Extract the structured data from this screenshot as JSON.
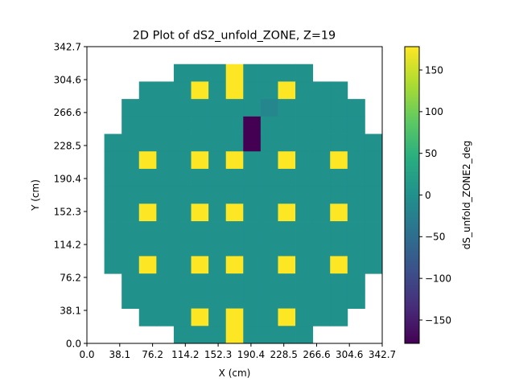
{
  "chart_data": {
    "type": "heatmap",
    "title": "2D Plot of dS2_unfold_ZONE, Z=19",
    "xlabel": "X (cm)",
    "ylabel": "Y (cm)",
    "colorbar_label": "dS_unfold_ZONE2_deg",
    "colormap": "viridis",
    "xlim": [
      0.0,
      342.7
    ],
    "ylim": [
      0.0,
      342.7
    ],
    "x_ticks": [
      "0.0",
      "38.1",
      "76.2",
      "114.2",
      "152.3",
      "190.4",
      "228.5",
      "266.6",
      "304.6",
      "342.7"
    ],
    "y_ticks": [
      "0.0",
      "38.1",
      "76.2",
      "114.2",
      "152.3",
      "190.4",
      "228.5",
      "266.6",
      "304.6",
      "342.7"
    ],
    "clim": [
      -178,
      178
    ],
    "colorbar_ticks": [
      150,
      100,
      50,
      0,
      -50,
      -100,
      -150
    ],
    "grid_n": 17,
    "cell_size": 20.16,
    "default_value": 0,
    "row_spans": [
      {
        "row": 1,
        "cols": [
          5,
          12
        ]
      },
      {
        "row": 2,
        "cols": [
          3,
          14
        ]
      },
      {
        "row": 3,
        "cols": [
          2,
          15
        ]
      },
      {
        "row": 4,
        "cols": [
          2,
          15
        ]
      },
      {
        "row": 5,
        "cols": [
          1,
          16
        ]
      },
      {
        "row": 6,
        "cols": [
          1,
          16
        ]
      },
      {
        "row": 7,
        "cols": [
          1,
          16
        ]
      },
      {
        "row": 8,
        "cols": [
          1,
          16
        ]
      },
      {
        "row": 9,
        "cols": [
          1,
          16
        ]
      },
      {
        "row": 10,
        "cols": [
          1,
          16
        ]
      },
      {
        "row": 11,
        "cols": [
          1,
          16
        ]
      },
      {
        "row": 12,
        "cols": [
          1,
          16
        ]
      },
      {
        "row": 13,
        "cols": [
          2,
          15
        ]
      },
      {
        "row": 14,
        "cols": [
          2,
          15
        ]
      },
      {
        "row": 15,
        "cols": [
          3,
          14
        ]
      },
      {
        "row": 16,
        "cols": [
          5,
          12
        ]
      }
    ],
    "special_cells": [
      {
        "col": 8,
        "row": 1,
        "value": 178
      },
      {
        "col": 8,
        "row": 2,
        "value": 178
      },
      {
        "col": 6,
        "row": 2,
        "value": 178
      },
      {
        "col": 11,
        "row": 2,
        "value": 178
      },
      {
        "col": 8,
        "row": 16,
        "value": 178
      },
      {
        "col": 8,
        "row": 15,
        "value": 178
      },
      {
        "col": 6,
        "row": 15,
        "value": 178
      },
      {
        "col": 11,
        "row": 15,
        "value": 178
      },
      {
        "col": 3,
        "row": 6,
        "value": 178
      },
      {
        "col": 6,
        "row": 6,
        "value": 178
      },
      {
        "col": 8,
        "row": 6,
        "value": 178
      },
      {
        "col": 11,
        "row": 6,
        "value": 178
      },
      {
        "col": 14,
        "row": 6,
        "value": 178
      },
      {
        "col": 3,
        "row": 9,
        "value": 178
      },
      {
        "col": 6,
        "row": 9,
        "value": 178
      },
      {
        "col": 8,
        "row": 9,
        "value": 178
      },
      {
        "col": 11,
        "row": 9,
        "value": 178
      },
      {
        "col": 14,
        "row": 9,
        "value": 178
      },
      {
        "col": 3,
        "row": 12,
        "value": 178
      },
      {
        "col": 6,
        "row": 12,
        "value": 178
      },
      {
        "col": 8,
        "row": 12,
        "value": 178
      },
      {
        "col": 11,
        "row": 12,
        "value": 178
      },
      {
        "col": 14,
        "row": 12,
        "value": 178
      },
      {
        "col": 9,
        "row": 4,
        "value": -178
      },
      {
        "col": 9,
        "row": 5,
        "value": -178
      },
      {
        "col": 10,
        "row": 3,
        "value": -15
      }
    ]
  }
}
